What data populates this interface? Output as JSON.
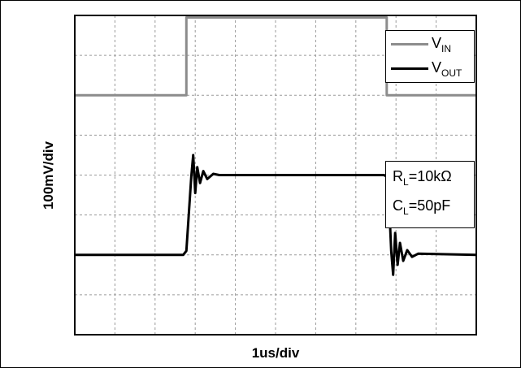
{
  "chart_data": {
    "type": "line",
    "title": "",
    "xlabel": "1us/div",
    "ylabel": "100mV/div",
    "x_divisions": 10,
    "y_divisions": 8,
    "grid": true,
    "legend_placement": "top-right",
    "x_unit": "div",
    "y_unit": "div",
    "xlim": [
      0,
      10
    ],
    "ylim": [
      0,
      8
    ],
    "series": [
      {
        "name": "V_IN",
        "label_main": "V",
        "label_sub": "IN",
        "color": "#8c8c8c",
        "x": [
          0,
          2.78,
          2.78,
          7.77,
          7.77,
          10
        ],
        "y": [
          6.0,
          6.0,
          7.95,
          7.95,
          6.0,
          6.0
        ]
      },
      {
        "name": "V_OUT",
        "label_main": "V",
        "label_sub": "OUT",
        "color": "#000000",
        "x": [
          0,
          2.7,
          2.78,
          2.9,
          2.95,
          3.0,
          3.05,
          3.12,
          3.2,
          3.3,
          3.45,
          3.6,
          7.7,
          7.8,
          7.88,
          7.93,
          7.98,
          8.04,
          8.1,
          8.18,
          8.28,
          8.4,
          8.55,
          10
        ],
        "y": [
          2.0,
          2.0,
          2.1,
          3.95,
          4.5,
          3.55,
          4.2,
          3.8,
          4.1,
          3.9,
          4.03,
          4.0,
          4.0,
          3.95,
          2.1,
          1.5,
          2.55,
          1.75,
          2.3,
          1.85,
          2.12,
          1.95,
          2.03,
          2.0
        ]
      }
    ]
  },
  "annotations": {
    "rl_main": "R",
    "rl_sub": "L",
    "rl_value": "=10kΩ",
    "cl_main": "C",
    "cl_sub": "L",
    "cl_value": "=50pF"
  }
}
